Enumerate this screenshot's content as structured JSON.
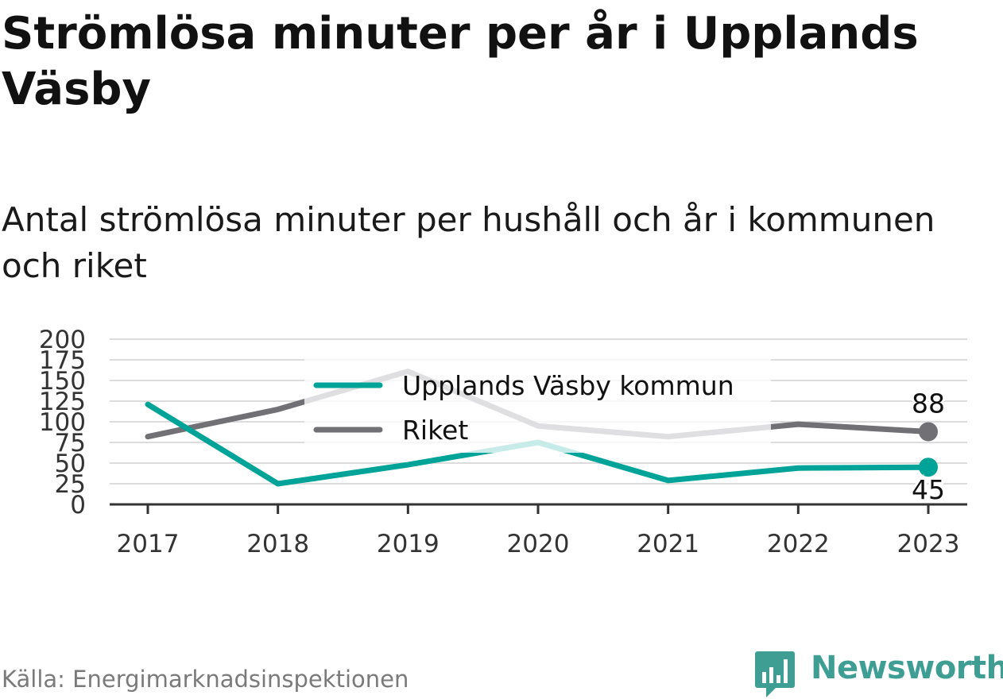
{
  "title": "Strömlösa minuter per år i Upplands Väsby",
  "subtitle": "Antal strömlösa minuter per hushåll och år i kommunen och riket",
  "source": "Källa: Energimarknadsinspektionen",
  "logo": {
    "text": "Newsworthy",
    "icon": "newsworthy-chart-bubble-icon",
    "color": "#3f9e93"
  },
  "colors": {
    "kommun": "#00a398",
    "riket": "#707075",
    "grid": "#dcdcdc",
    "axis": "#333333"
  },
  "chart_data": {
    "type": "line",
    "x": [
      "2017",
      "2018",
      "2019",
      "2020",
      "2021",
      "2022",
      "2023"
    ],
    "ylim": [
      0,
      200
    ],
    "yticks": [
      "0",
      "25",
      "50",
      "75",
      "100",
      "125",
      "150",
      "175",
      "200"
    ],
    "grid": true,
    "legend": "top-center",
    "series": [
      {
        "name": "Upplands Väsby kommun",
        "values": [
          121,
          25,
          48,
          75,
          29,
          44,
          45
        ],
        "end_label": "45"
      },
      {
        "name": "Riket",
        "values": [
          82,
          115,
          161,
          95,
          82,
          97,
          88
        ],
        "end_label": "88"
      }
    ]
  }
}
